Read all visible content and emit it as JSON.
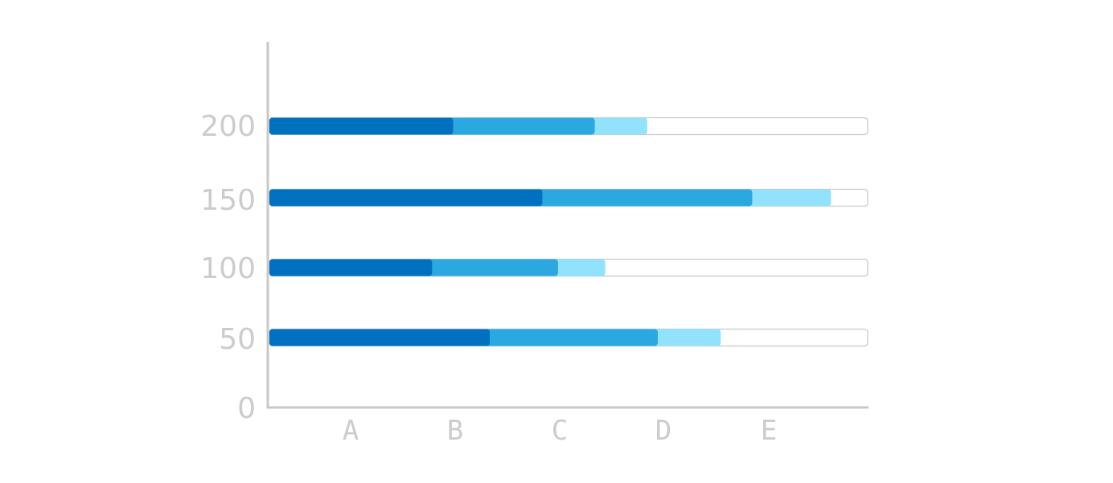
{
  "chart_data": {
    "type": "bar",
    "orientation": "horizontal",
    "stacked": true,
    "y_ticks": [
      "200",
      "150",
      "100",
      "50",
      "0"
    ],
    "x_categories": [
      "A",
      "B",
      "C",
      "D",
      "E"
    ],
    "rows": [
      {
        "tick": "200",
        "segments": [
          1.75,
          1.35,
          0.5
        ],
        "total": 5.7
      },
      {
        "tick": "150",
        "segments": [
          2.6,
          2.0,
          0.75
        ],
        "total": 5.7
      },
      {
        "tick": "100",
        "segments": [
          1.55,
          1.2,
          0.45
        ],
        "total": 5.7
      },
      {
        "tick": "50",
        "segments": [
          2.1,
          1.6,
          0.6
        ],
        "total": 5.7
      }
    ],
    "xlim": [
      0,
      5.7
    ],
    "colors": {
      "segments": [
        "#0070c0",
        "#2aa9e0",
        "#93e2fd"
      ],
      "track_border": "#c8c8c8",
      "axis": "#c8c8c8",
      "label": "#cccccc"
    },
    "grid": false,
    "legend": "none"
  }
}
